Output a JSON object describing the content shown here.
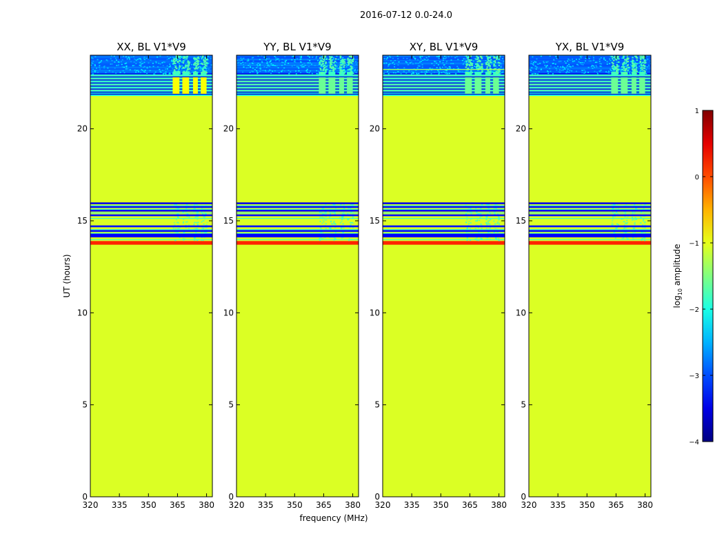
{
  "chart_data": {
    "type": "heatmap",
    "suptitle": "2016-07-12 0.0-24.0",
    "xlabel": "frequency (MHz)",
    "ylabel": "UT (hours)",
    "xlim": [
      320,
      383
    ],
    "ylim": [
      0,
      24
    ],
    "xticks": [
      320,
      335,
      350,
      365,
      380
    ],
    "yticks": [
      0,
      5,
      10,
      15,
      20
    ],
    "colorbar": {
      "label": "log10 amplitude",
      "label_main": "log",
      "label_sub": "10",
      "label_rest": " amplitude",
      "range": [
        -4,
        1
      ],
      "ticks": [
        {
          "value": -4,
          "label": "−4"
        },
        {
          "value": -3,
          "label": "−3"
        },
        {
          "value": -2,
          "label": "−2"
        },
        {
          "value": -1,
          "label": "−1"
        },
        {
          "value": 0,
          "label": "0"
        },
        {
          "value": 1,
          "label": "1"
        }
      ],
      "colormap": "jet"
    },
    "panels": [
      {
        "title": "XX, BL V1*V9",
        "top_rfi_level": -0.9,
        "xy_rfi_line": false
      },
      {
        "title": "YY, BL V1*V9",
        "top_rfi_level": -1.6,
        "xy_rfi_line": false
      },
      {
        "title": "XY, BL V1*V9",
        "top_rfi_level": -1.6,
        "xy_rfi_line": true
      },
      {
        "title": "YX, BL V1*V9",
        "top_rfi_level": -1.6,
        "xy_rfi_line": false
      }
    ],
    "background_level": -1.05,
    "flag_band": {
      "ut": [
        13.7,
        13.9
      ],
      "level": 0.2
    },
    "horizontal_bands": [
      {
        "ut": [
          14.1,
          14.3
        ],
        "level": -3.4
      },
      {
        "ut": [
          14.4,
          14.5
        ],
        "level": -3.3
      },
      {
        "ut": [
          14.65,
          14.75
        ],
        "level": -3.3
      },
      {
        "ut": [
          15.25,
          15.35
        ],
        "level": -3.3
      },
      {
        "ut": [
          15.5,
          15.6
        ],
        "level": -3.4
      },
      {
        "ut": [
          15.7,
          15.8
        ],
        "level": -3.3
      },
      {
        "ut": [
          15.9,
          16.0
        ],
        "level": -3.5
      }
    ],
    "active_blocks": [
      {
        "ut": [
          21.8,
          24.0
        ]
      }
    ],
    "rfi_freq_ranges_mhz": [
      [
        362.5,
        366
      ],
      [
        367.5,
        371
      ],
      [
        373,
        375.5
      ],
      [
        377,
        380
      ]
    ]
  }
}
